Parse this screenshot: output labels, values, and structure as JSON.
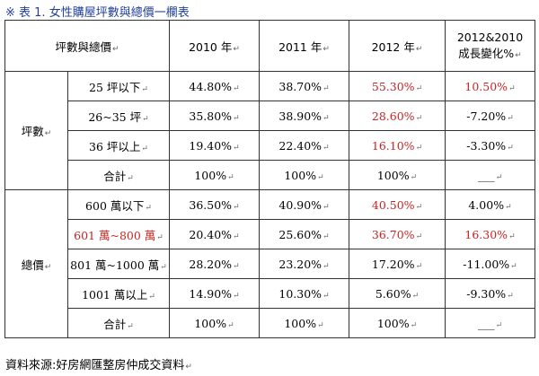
{
  "title": "※ 表 1. 女性購屋坪數與總價一欄表",
  "header": {
    "category": "坪數與總價",
    "col_2010": "2010 年",
    "col_2011": "2011 年",
    "col_2012": "2012 年",
    "col_change_line1": "2012&2010",
    "col_change_line2": "成長變化%"
  },
  "groups": {
    "size": "坪數",
    "price": "總價"
  },
  "rows": [
    {
      "label": "25 坪以下",
      "v2010": "44.80%",
      "v2011": "38.70%",
      "v2012": "55.30%",
      "change": "10.50%"
    },
    {
      "label": "26~35 坪",
      "v2010": "35.80%",
      "v2011": "38.90%",
      "v2012": "28.60%",
      "change": "-7.20%"
    },
    {
      "label": "36 坪以上",
      "v2010": "19.40%",
      "v2011": "22.40%",
      "v2012": "16.10%",
      "change": "-3.30%"
    },
    {
      "label": "合計",
      "v2010": "100%",
      "v2011": "100%",
      "v2012": "100%",
      "change": "___"
    },
    {
      "label": "600 萬以下",
      "v2010": "36.50%",
      "v2011": "40.90%",
      "v2012": "40.50%",
      "change": "4.00%"
    },
    {
      "label": "601 萬~800 萬",
      "v2010": "20.40%",
      "v2011": "25.60%",
      "v2012": "36.70%",
      "change": "16.30%"
    },
    {
      "label": "801 萬~1000 萬",
      "v2010": "28.20%",
      "v2011": "23.20%",
      "v2012": "17.20%",
      "change": "-11.00%"
    },
    {
      "label": "1001 萬以上",
      "v2010": "14.90%",
      "v2011": "10.30%",
      "v2012": "5.60%",
      "change": "-9.30%"
    },
    {
      "label": "合計",
      "v2010": "100%",
      "v2011": "100%",
      "v2012": "100%",
      "change": "___"
    }
  ],
  "source": "資料來源:好房網匯整房仲成交資料",
  "colors": {
    "highlight_red": "#cc2222",
    "title_blue": "#1f3f9a"
  }
}
